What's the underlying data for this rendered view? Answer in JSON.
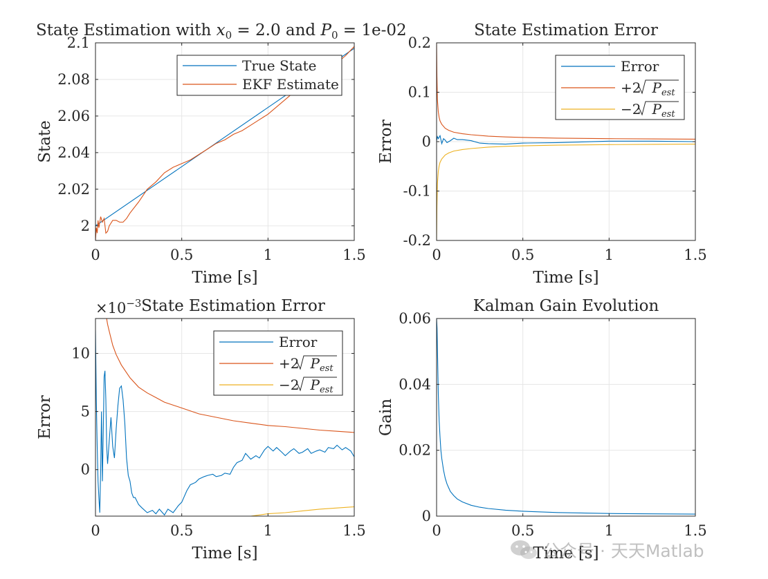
{
  "colors": {
    "blue": "#0072BD",
    "orange": "#D95319",
    "yellow": "#EDB120",
    "axis": "#262626",
    "grid": "#e6e6e6"
  },
  "watermark": {
    "text": "公众号 · 天天Matlab"
  },
  "chart_data": [
    {
      "id": "state",
      "type": "line",
      "title": "State Estimation with x0 = 2.0 and P0 = 1e-02",
      "title_parts": {
        "pre": "State Estimation with ",
        "x": "x",
        "xsub": "0",
        "mid": " = 2.0 and ",
        "p": "P",
        "psub": "0",
        "post": " = 1e-02"
      },
      "xlabel": "Time [s]",
      "ylabel": "State",
      "xlim": [
        0,
        1.5
      ],
      "ylim": [
        1.992,
        2.1
      ],
      "xticks": [
        0,
        0.5,
        1,
        1.5
      ],
      "xtick_labels": [
        "0",
        "0.5",
        "1",
        "1.5"
      ],
      "yticks": [
        2,
        2.02,
        2.04,
        2.06,
        2.08,
        2.1
      ],
      "ytick_labels": [
        "2",
        "2.02",
        "2.04",
        "2.06",
        "2.08",
        "2.1"
      ],
      "grid": true,
      "legend_location": "top-right",
      "series": [
        {
          "name": "True State",
          "color": "#0072BD",
          "x": [
            0,
            1.5
          ],
          "y": [
            2.0,
            2.097
          ]
        },
        {
          "name": "EKF Estimate",
          "color": "#D95319",
          "x": [
            0,
            0.005,
            0.01,
            0.015,
            0.02,
            0.03,
            0.04,
            0.05,
            0.06,
            0.07,
            0.08,
            0.1,
            0.12,
            0.14,
            0.16,
            0.18,
            0.2,
            0.25,
            0.3,
            0.35,
            0.4,
            0.45,
            0.5,
            0.55,
            0.6,
            0.65,
            0.7,
            0.75,
            0.8,
            0.85,
            0.9,
            0.95,
            1.0,
            1.05,
            1.1,
            1.15,
            1.2,
            1.25,
            1.3,
            1.35,
            1.4,
            1.45,
            1.5
          ],
          "y": [
            1.992,
            1.999,
            1.996,
            2.003,
            1.999,
            2.005,
            2.002,
            2.004,
            1.996,
            1.997,
            2.0,
            2.003,
            2.003,
            2.002,
            2.002,
            2.004,
            2.007,
            2.013,
            2.02,
            2.024,
            2.029,
            2.032,
            2.034,
            2.036,
            2.039,
            2.042,
            2.045,
            2.047,
            2.05,
            2.052,
            2.055,
            2.058,
            2.061,
            2.065,
            2.069,
            2.073,
            2.076,
            2.079,
            2.083,
            2.086,
            2.089,
            2.093,
            2.098
          ]
        }
      ]
    },
    {
      "id": "error1",
      "type": "line",
      "title": "State Estimation Error",
      "xlabel": "Time [s]",
      "ylabel": "Error",
      "xlim": [
        0,
        1.5
      ],
      "ylim": [
        -0.2,
        0.2
      ],
      "xticks": [
        0,
        0.5,
        1,
        1.5
      ],
      "xtick_labels": [
        "0",
        "0.5",
        "1",
        "1.5"
      ],
      "yticks": [
        -0.2,
        -0.1,
        0,
        0.1,
        0.2
      ],
      "ytick_labels": [
        "-0.2",
        "-0.1",
        "0",
        "0.1",
        "0.2"
      ],
      "grid": true,
      "legend_location": "top-right",
      "series": [
        {
          "name": "Error",
          "legend": "Error",
          "color": "#0072BD",
          "x": [
            0,
            0.005,
            0.01,
            0.02,
            0.03,
            0.04,
            0.05,
            0.06,
            0.08,
            0.1,
            0.12,
            0.15,
            0.2,
            0.25,
            0.3,
            0.4,
            0.5,
            0.7,
            1.0,
            1.25,
            1.5
          ],
          "y": [
            0.002,
            0.01,
            0.006,
            0.012,
            -0.004,
            0.006,
            0.003,
            -0.002,
            0.002,
            0.007,
            0.004,
            0.004,
            0.002,
            -0.003,
            -0.004,
            -0.005,
            -0.003,
            -0.002,
            0.001,
            0.001,
            0.0
          ]
        },
        {
          "name": "+2 sqrt(Pest)",
          "legend_prefix": "+2",
          "color": "#D95319",
          "x": [
            0,
            0.002,
            0.005,
            0.01,
            0.015,
            0.02,
            0.03,
            0.05,
            0.07,
            0.1,
            0.15,
            0.2,
            0.3,
            0.4,
            0.5,
            0.7,
            1.0,
            1.25,
            1.5
          ],
          "y": [
            0.2,
            0.133,
            0.085,
            0.06,
            0.049,
            0.042,
            0.035,
            0.027,
            0.023,
            0.019,
            0.016,
            0.014,
            0.011,
            0.0095,
            0.0085,
            0.0072,
            0.006,
            0.0054,
            0.005
          ]
        },
        {
          "name": "-2 sqrt(Pest)",
          "legend_prefix": "−2",
          "color": "#EDB120",
          "x": [
            0,
            0.002,
            0.005,
            0.01,
            0.015,
            0.02,
            0.03,
            0.05,
            0.07,
            0.1,
            0.15,
            0.2,
            0.3,
            0.4,
            0.5,
            0.7,
            1.0,
            1.25,
            1.5
          ],
          "y": [
            -0.2,
            -0.133,
            -0.085,
            -0.06,
            -0.049,
            -0.042,
            -0.035,
            -0.027,
            -0.023,
            -0.019,
            -0.016,
            -0.014,
            -0.011,
            -0.0095,
            -0.0085,
            -0.0072,
            -0.006,
            -0.0054,
            -0.005
          ]
        }
      ],
      "legend_sqrt_base": "P",
      "legend_sqrt_sub": "est"
    },
    {
      "id": "error2",
      "type": "line",
      "title": "State Estimation Error",
      "xlabel": "Time [s]",
      "ylabel": "Error",
      "exponent_label": "×10",
      "exponent_power": "−3",
      "xlim": [
        0,
        1.5
      ],
      "ylim": [
        -4,
        13
      ],
      "xticks": [
        0,
        0.5,
        1,
        1.5
      ],
      "xtick_labels": [
        "0",
        "0.5",
        "1",
        "1.5"
      ],
      "yticks": [
        0,
        5,
        10
      ],
      "ytick_labels": [
        "0",
        "5",
        "10"
      ],
      "grid": true,
      "legend_location": "top-right",
      "series": [
        {
          "name": "Error",
          "legend": "Error",
          "color": "#0072BD",
          "x": [
            0,
            0.005,
            0.01,
            0.015,
            0.02,
            0.025,
            0.03,
            0.035,
            0.04,
            0.045,
            0.05,
            0.055,
            0.06,
            0.065,
            0.07,
            0.08,
            0.09,
            0.1,
            0.11,
            0.12,
            0.13,
            0.14,
            0.15,
            0.16,
            0.17,
            0.18,
            0.19,
            0.2,
            0.21,
            0.22,
            0.23,
            0.25,
            0.27,
            0.3,
            0.33,
            0.35,
            0.37,
            0.4,
            0.42,
            0.45,
            0.48,
            0.5,
            0.53,
            0.55,
            0.58,
            0.6,
            0.63,
            0.65,
            0.68,
            0.7,
            0.73,
            0.75,
            0.78,
            0.8,
            0.82,
            0.85,
            0.87,
            0.9,
            0.93,
            0.95,
            0.98,
            1.0,
            1.03,
            1.05,
            1.08,
            1.1,
            1.13,
            1.15,
            1.18,
            1.2,
            1.23,
            1.25,
            1.28,
            1.3,
            1.33,
            1.35,
            1.38,
            1.4,
            1.43,
            1.45,
            1.48,
            1.5
          ],
          "y": [
            12,
            6,
            2,
            -1,
            -2.5,
            -3.7,
            0,
            5,
            -1,
            3,
            8,
            8.5,
            6,
            2,
            0.5,
            2.5,
            4.5,
            2,
            1,
            3.5,
            5.5,
            7,
            7.2,
            6,
            4,
            1,
            -0.5,
            -1,
            -2,
            -2.4,
            -2.4,
            -3,
            -3.3,
            -3.7,
            -3.5,
            -3.8,
            -3.4,
            -3.9,
            -3.4,
            -3.7,
            -3.1,
            -2.8,
            -1.8,
            -1.3,
            -1.1,
            -0.8,
            -0.6,
            -0.5,
            -0.4,
            -0.6,
            -0.5,
            -0.3,
            -0.4,
            0.2,
            0.6,
            0.8,
            1.4,
            0.9,
            1.2,
            1.0,
            1.7,
            2.0,
            1.6,
            1.9,
            1.5,
            1.2,
            1.6,
            1.8,
            1.4,
            1.5,
            1.8,
            1.4,
            1.6,
            1.7,
            1.5,
            1.9,
            1.8,
            2.1,
            1.7,
            1.9,
            1.6,
            1.1
          ]
        },
        {
          "name": "+2 sqrt(Pest)",
          "legend_prefix": "+2",
          "color": "#D95319",
          "x": [
            0.06,
            0.07,
            0.08,
            0.1,
            0.12,
            0.15,
            0.2,
            0.25,
            0.3,
            0.35,
            0.4,
            0.5,
            0.6,
            0.7,
            0.8,
            0.9,
            1.0,
            1.1,
            1.2,
            1.3,
            1.4,
            1.5
          ],
          "y": [
            13.4,
            12.5,
            11.9,
            10.7,
            9.9,
            9.0,
            7.9,
            7.1,
            6.6,
            6.2,
            5.8,
            5.3,
            4.8,
            4.5,
            4.2,
            4.0,
            3.8,
            3.7,
            3.55,
            3.4,
            3.3,
            3.2
          ]
        },
        {
          "name": "-2 sqrt(Pest)",
          "legend_prefix": "−2",
          "color": "#EDB120",
          "x": [
            0.9,
            1.0,
            1.1,
            1.2,
            1.3,
            1.4,
            1.5
          ],
          "y": [
            -4.0,
            -3.8,
            -3.7,
            -3.55,
            -3.4,
            -3.3,
            -3.2
          ]
        }
      ],
      "legend_sqrt_base": "P",
      "legend_sqrt_sub": "est"
    },
    {
      "id": "gain",
      "type": "line",
      "title": "Kalman Gain Evolution",
      "xlabel": "Time [s]",
      "ylabel": "Gain",
      "xlim": [
        0,
        1.5
      ],
      "ylim": [
        0,
        0.06
      ],
      "xticks": [
        0,
        0.5,
        1,
        1.5
      ],
      "xtick_labels": [
        "0",
        "0.5",
        "1",
        "1.5"
      ],
      "yticks": [
        0,
        0.02,
        0.04,
        0.06
      ],
      "ytick_labels": [
        "0",
        "0.02",
        "0.04",
        "0.06"
      ],
      "grid": true,
      "series": [
        {
          "name": "Gain",
          "color": "#0072BD",
          "x": [
            0,
            0.003,
            0.006,
            0.01,
            0.015,
            0.02,
            0.025,
            0.03,
            0.04,
            0.05,
            0.06,
            0.07,
            0.08,
            0.1,
            0.12,
            0.15,
            0.2,
            0.25,
            0.3,
            0.4,
            0.5,
            0.7,
            1.0,
            1.25,
            1.5
          ],
          "y": [
            0.06,
            0.057,
            0.048,
            0.037,
            0.029,
            0.024,
            0.02,
            0.0175,
            0.014,
            0.0115,
            0.0098,
            0.0086,
            0.0075,
            0.0062,
            0.0052,
            0.0043,
            0.0033,
            0.0027,
            0.0023,
            0.0018,
            0.0015,
            0.0011,
            0.0008,
            0.0007,
            0.0006
          ]
        }
      ]
    }
  ]
}
